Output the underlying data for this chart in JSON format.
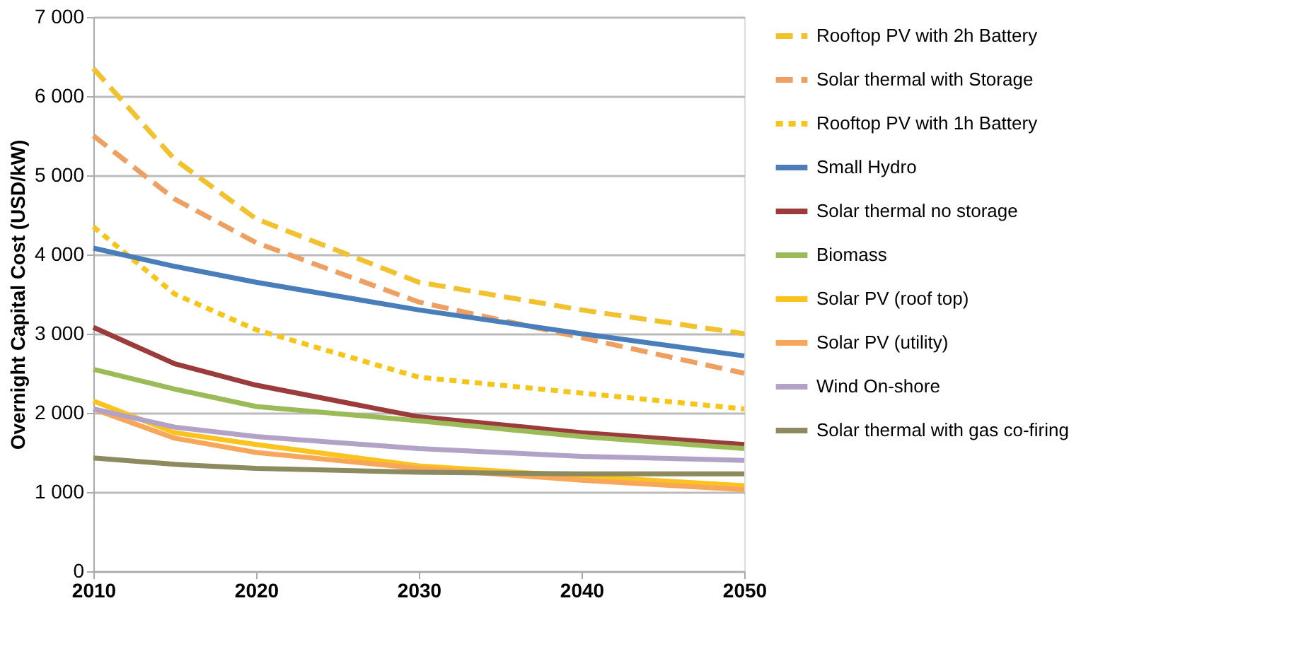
{
  "chart_data": {
    "type": "line",
    "ylabel": "Overnight Capital Cost (USD/kW)",
    "x": [
      2010,
      2015,
      2020,
      2030,
      2040,
      2050
    ],
    "xlim": [
      2010,
      2050
    ],
    "xticks": [
      2010,
      2020,
      2030,
      2040,
      2050
    ],
    "ylim": [
      0,
      7000
    ],
    "yticks": [
      0,
      {
        "value": 1000,
        "label": "1 000"
      },
      {
        "value": 2000,
        "label": "2 000"
      },
      {
        "value": 3000,
        "label": "3 000"
      },
      {
        "value": 4000,
        "label": "4 000"
      },
      {
        "value": 5000,
        "label": "5 000"
      },
      {
        "value": 6000,
        "label": "6 000"
      },
      {
        "value": 7000,
        "label": "7 000"
      }
    ],
    "grid": "y",
    "legend": "right",
    "line_style": "solid",
    "marker": "none",
    "series": [
      {
        "name": "Rooftop PV with 2h Battery",
        "color": "#f2c12e",
        "line_style": "dashed",
        "values": [
          6350,
          5200,
          4450,
          3650,
          3300,
          3000
        ]
      },
      {
        "name": "Solar thermal with Storage",
        "color": "#ee9f62",
        "line_style": "dashed",
        "values": [
          5500,
          4700,
          4150,
          3400,
          2950,
          2500
        ]
      },
      {
        "name": "Rooftop PV with 1h Battery",
        "color": "#f5c518",
        "line_style": "dotted",
        "values": [
          4350,
          3500,
          3050,
          2450,
          2250,
          2050
        ]
      },
      {
        "name": "Small Hydro",
        "color": "#4a7ebb",
        "values": [
          4080,
          3850,
          3650,
          3300,
          3000,
          2720
        ]
      },
      {
        "name": "Solar thermal no storage",
        "color": "#9b3b3b",
        "values": [
          3080,
          2620,
          2350,
          1950,
          1750,
          1600
        ]
      },
      {
        "name": "Biomass",
        "color": "#9bbb59",
        "values": [
          2550,
          2300,
          2080,
          1900,
          1700,
          1550
        ]
      },
      {
        "name": "Solar PV (roof top)",
        "color": "#fac320",
        "values": [
          2150,
          1750,
          1600,
          1330,
          1200,
          1080
        ]
      },
      {
        "name": "Solar PV (utility)",
        "color": "#f7a65a",
        "values": [
          2050,
          1680,
          1500,
          1300,
          1150,
          1030
        ]
      },
      {
        "name": "Wind On-shore",
        "color": "#b3a2c7",
        "values": [
          2050,
          1820,
          1700,
          1550,
          1450,
          1400
        ]
      },
      {
        "name": "Solar thermal with gas co-firing",
        "color": "#8c8a5e",
        "values": [
          1430,
          1350,
          1300,
          1250,
          1230,
          1230
        ]
      }
    ]
  }
}
